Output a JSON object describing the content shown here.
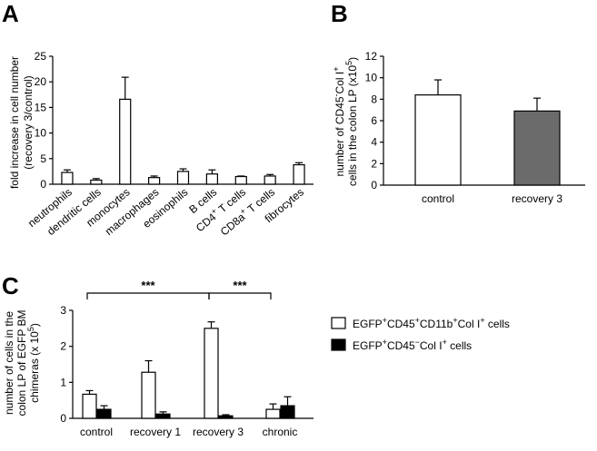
{
  "panels": {
    "A": {
      "letter": "A"
    },
    "B": {
      "letter": "B"
    },
    "C": {
      "letter": "C"
    }
  },
  "chart_data": [
    {
      "id": "A",
      "type": "bar",
      "ylabel": "fold increase in cell number (recovery 3/control)",
      "ylabel_lines": [
        "fold increase in cell number",
        "(recovery 3/control)"
      ],
      "ylim": [
        0,
        25
      ],
      "yticks": [
        0,
        5,
        10,
        15,
        20,
        25
      ],
      "categories": [
        "neutrophils",
        "dendritic cells",
        "monocytes",
        "macrophages",
        "eosinophils",
        "B cells",
        "CD4+ T cells",
        "CD8a+ T cells",
        "fibrocytes"
      ],
      "values": [
        2.3,
        0.8,
        16.6,
        1.3,
        2.5,
        2.0,
        1.5,
        1.6,
        3.8
      ],
      "errors": [
        0.5,
        0.3,
        4.3,
        0.3,
        0.5,
        0.8,
        0.1,
        0.3,
        0.4
      ],
      "bar_color": "#ffffff",
      "grid": false
    },
    {
      "id": "B",
      "type": "bar",
      "ylabel": "number of CD45-Col I+ cells in the colon LP (x10^5)",
      "ylim": [
        0,
        12
      ],
      "yticks": [
        0,
        2,
        4,
        6,
        8,
        10,
        12
      ],
      "categories": [
        "control",
        "recovery 3"
      ],
      "values": [
        8.4,
        6.9
      ],
      "errors": [
        1.4,
        1.2
      ],
      "bar_colors": [
        "#ffffff",
        "#6b6b6b"
      ],
      "grid": false
    },
    {
      "id": "C",
      "type": "bar",
      "ylabel": "number of cells in the colon LP of EGFP BM chimeras (x 10^5)",
      "ylabel_lines": [
        "number of cells in the",
        "colon LP of EGFP BM",
        "chimeras (x 10"
      ],
      "ylim": [
        0,
        3
      ],
      "yticks": [
        0,
        1,
        2,
        3
      ],
      "categories": [
        "control",
        "recovery 1",
        "recovery 3",
        "chronic"
      ],
      "series": [
        {
          "name": "EGFP+CD45+CD11b+Col I+ cells",
          "values": [
            0.67,
            1.28,
            2.5,
            0.25
          ],
          "errors": [
            0.1,
            0.32,
            0.18,
            0.15
          ],
          "color": "#ffffff"
        },
        {
          "name": "EGFP+CD45-Col I+ cells",
          "values": [
            0.25,
            0.12,
            0.07,
            0.35
          ],
          "errors": [
            0.1,
            0.06,
            0.03,
            0.25
          ],
          "color": "#000000"
        }
      ],
      "significance": [
        {
          "from": "control",
          "to": "recovery 3",
          "label": "***"
        },
        {
          "from": "recovery 3",
          "to": "chronic",
          "label": "***"
        }
      ],
      "legend_position": "top-right",
      "grid": false
    }
  ]
}
